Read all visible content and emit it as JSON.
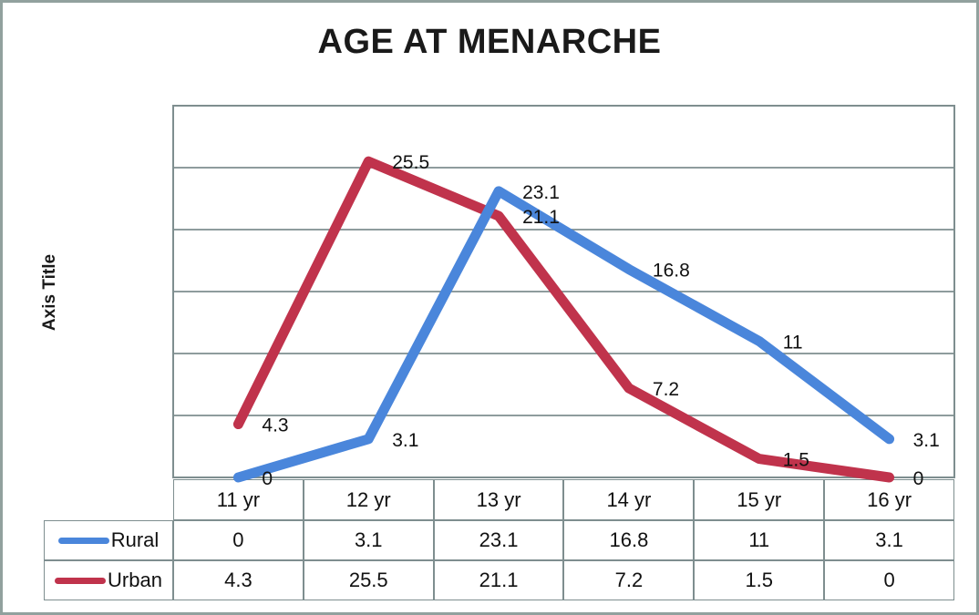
{
  "page": {
    "background": "#ffffff",
    "frame_border_color": "#91A19E"
  },
  "chart_data": {
    "type": "line",
    "title": "AGE AT MENARCHE",
    "y_axis_label": "Axis Title",
    "xlabel": "",
    "ylabel": "Axis Title",
    "categories": [
      "11 yr",
      "12 yr",
      "13 yr",
      "14 yr",
      "15 yr",
      "16 yr"
    ],
    "series": [
      {
        "name": "Rural",
        "color": "#4A86DB",
        "values": [
          0,
          3.1,
          23.1,
          16.8,
          11,
          3.1
        ]
      },
      {
        "name": "Urban",
        "color": "#C0334C",
        "values": [
          4.3,
          25.5,
          21.1,
          7.2,
          1.5,
          0
        ]
      }
    ],
    "ylim": [
      0,
      30
    ],
    "gridline_interval": 5,
    "grid": true,
    "gridline_color": "#7E8E8F",
    "data_labels_position": "right",
    "legend_position": "table-left",
    "data_table_shown": true
  }
}
